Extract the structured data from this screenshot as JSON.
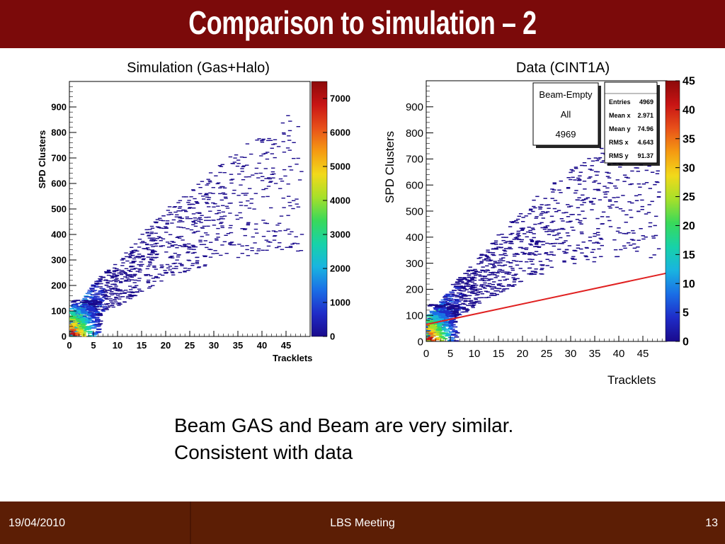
{
  "slide": {
    "title": "Comparison to simulation – 2",
    "body_lines": [
      "Beam GAS and Beam are very similar.",
      "Consistent with data"
    ],
    "footer": {
      "date": "19/04/2010",
      "center": "LBS Meeting",
      "page": "13"
    },
    "colors": {
      "title_bar": "#7b0a0a",
      "footer": "#5c1e05",
      "fit_line": "#e02020"
    }
  },
  "chart_data": [
    {
      "type": "heatmap",
      "title": "Simulation (Gas+Halo)",
      "xlabel": "Tracklets",
      "ylabel": "SPD Clusters",
      "xlim": [
        0,
        50
      ],
      "ylim": [
        0,
        1000
      ],
      "xticks": [
        "0",
        "5",
        "10",
        "15",
        "20",
        "25",
        "30",
        "35",
        "40",
        "45"
      ],
      "yticks": [
        "0",
        "100",
        "200",
        "300",
        "400",
        "500",
        "600",
        "700",
        "800",
        "900"
      ],
      "colorbar": {
        "min": 0,
        "max": 7500,
        "ticks": [
          "0",
          "1000",
          "2000",
          "3000",
          "4000",
          "5000",
          "6000",
          "7000"
        ]
      },
      "density_trend": {
        "x": [
          0,
          5,
          10,
          15,
          20,
          25,
          30,
          35,
          40,
          45
        ],
        "y": [
          30,
          150,
          210,
          290,
          360,
          420,
          470,
          520,
          560,
          600
        ]
      },
      "grid": false
    },
    {
      "type": "heatmap",
      "title": "Data (CINT1A)",
      "xlabel": "Tracklets",
      "ylabel": "SPD Clusters",
      "xlim": [
        0,
        50
      ],
      "ylim": [
        0,
        1000
      ],
      "xticks": [
        "0",
        "5",
        "10",
        "15",
        "20",
        "25",
        "30",
        "35",
        "40",
        "45"
      ],
      "yticks": [
        "0",
        "100",
        "200",
        "300",
        "400",
        "500",
        "600",
        "700",
        "800",
        "900"
      ],
      "colorbar": {
        "min": 0,
        "max": 45,
        "ticks": [
          "0",
          "5",
          "10",
          "15",
          "20",
          "25",
          "30",
          "35",
          "40",
          "45"
        ]
      },
      "density_trend": {
        "x": [
          0,
          5,
          10,
          15,
          20,
          25,
          30,
          35,
          40,
          45
        ],
        "y": [
          40,
          150,
          220,
          300,
          370,
          430,
          480,
          520,
          560,
          590
        ]
      },
      "fit_line": {
        "x": [
          0,
          50
        ],
        "y": [
          65,
          262
        ]
      },
      "label_box": {
        "lines": [
          "Beam-Empty",
          "All",
          "4969"
        ]
      },
      "stats_box": {
        "rows": [
          {
            "name": "Entries",
            "value": "4969"
          },
          {
            "name": "Mean x",
            "value": "2.971"
          },
          {
            "name": "Mean y",
            "value": "74.96"
          },
          {
            "name": "RMS x",
            "value": "4.643"
          },
          {
            "name": "RMS y",
            "value": "91.37"
          }
        ]
      },
      "grid": false
    }
  ]
}
